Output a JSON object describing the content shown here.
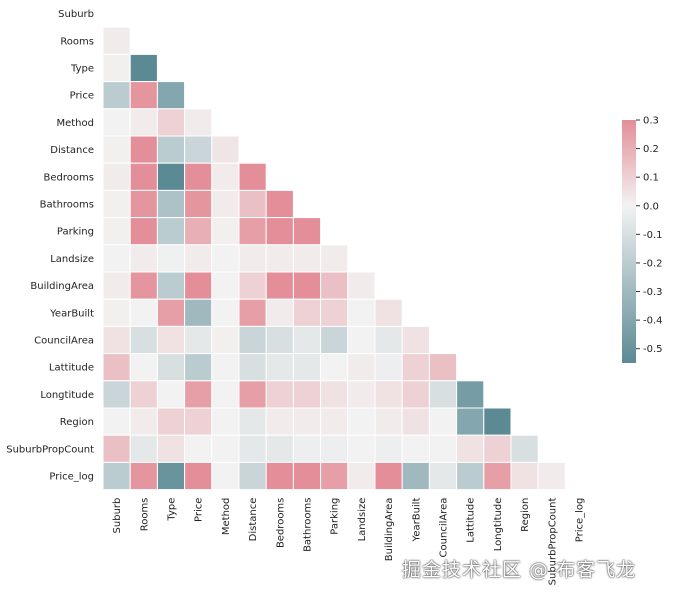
{
  "chart_data": {
    "type": "heatmap",
    "variant": "lower-triangle correlation matrix",
    "labels": [
      "Suburb",
      "Rooms",
      "Type",
      "Price",
      "Method",
      "Distance",
      "Bedrooms",
      "Bathrooms",
      "Parking",
      "Landsize",
      "BuildingArea",
      "YearBuilt",
      "CouncilArea",
      "Lattitude",
      "Longtitude",
      "Region",
      "SuburbPropCount",
      "Price_log"
    ],
    "matrix": [
      [],
      [
        0.02
      ],
      [
        0.01,
        -0.55
      ],
      [
        -0.2,
        0.28,
        -0.4
      ],
      [
        0.0,
        0.02,
        0.1,
        0.02
      ],
      [
        0.01,
        0.3,
        -0.2,
        -0.15,
        0.04
      ],
      [
        0.02,
        0.3,
        -0.55,
        0.3,
        0.02,
        0.3
      ],
      [
        0.01,
        0.28,
        -0.25,
        0.28,
        0.02,
        0.15,
        0.3
      ],
      [
        0.01,
        0.3,
        -0.2,
        0.2,
        0.01,
        0.25,
        0.3,
        0.3
      ],
      [
        0.0,
        0.02,
        -0.01,
        0.02,
        0.0,
        0.02,
        0.02,
        0.02,
        0.02
      ],
      [
        0.02,
        0.28,
        -0.2,
        0.3,
        0.0,
        0.1,
        0.3,
        0.3,
        0.15,
        0.02
      ],
      [
        0.01,
        0.0,
        0.25,
        -0.3,
        0.0,
        0.25,
        0.02,
        0.1,
        0.1,
        0.0,
        0.05
      ],
      [
        0.05,
        -0.1,
        0.05,
        -0.05,
        0.01,
        -0.15,
        -0.1,
        -0.05,
        -0.15,
        0.0,
        -0.05,
        0.05
      ],
      [
        0.15,
        0.0,
        -0.1,
        -0.2,
        0.0,
        -0.1,
        -0.05,
        -0.05,
        0.0,
        0.02,
        -0.02,
        0.1,
        0.15
      ],
      [
        -0.15,
        0.1,
        0.0,
        0.25,
        0.0,
        0.25,
        0.1,
        0.1,
        0.05,
        0.02,
        0.05,
        0.1,
        -0.1,
        -0.45
      ],
      [
        0.0,
        0.02,
        0.1,
        0.1,
        0.0,
        -0.05,
        0.02,
        0.02,
        0.02,
        0.0,
        0.02,
        0.05,
        0.0,
        -0.4,
        -0.55
      ],
      [
        0.15,
        -0.05,
        0.05,
        0.0,
        0.0,
        -0.05,
        -0.05,
        -0.02,
        -0.02,
        0.0,
        -0.02,
        0.0,
        0.0,
        0.05,
        0.1,
        -0.1
      ],
      [
        -0.2,
        0.28,
        -0.5,
        0.3,
        0.0,
        -0.15,
        0.3,
        0.3,
        0.25,
        0.02,
        0.3,
        -0.3,
        -0.05,
        -0.2,
        0.25,
        0.05,
        0.02
      ]
    ],
    "colorbar": {
      "min": -0.55,
      "max": 0.3,
      "ticks": [
        "0.3",
        "0.2",
        "0.1",
        "0.0",
        "-0.1",
        "-0.2",
        "-0.3",
        "-0.4",
        "-0.5"
      ]
    },
    "colors": {
      "negative": "#5b8994",
      "center": "#f2f2f2",
      "positive": "#e38e98"
    }
  },
  "watermark": "掘金技术社区 @ 布客飞龙"
}
